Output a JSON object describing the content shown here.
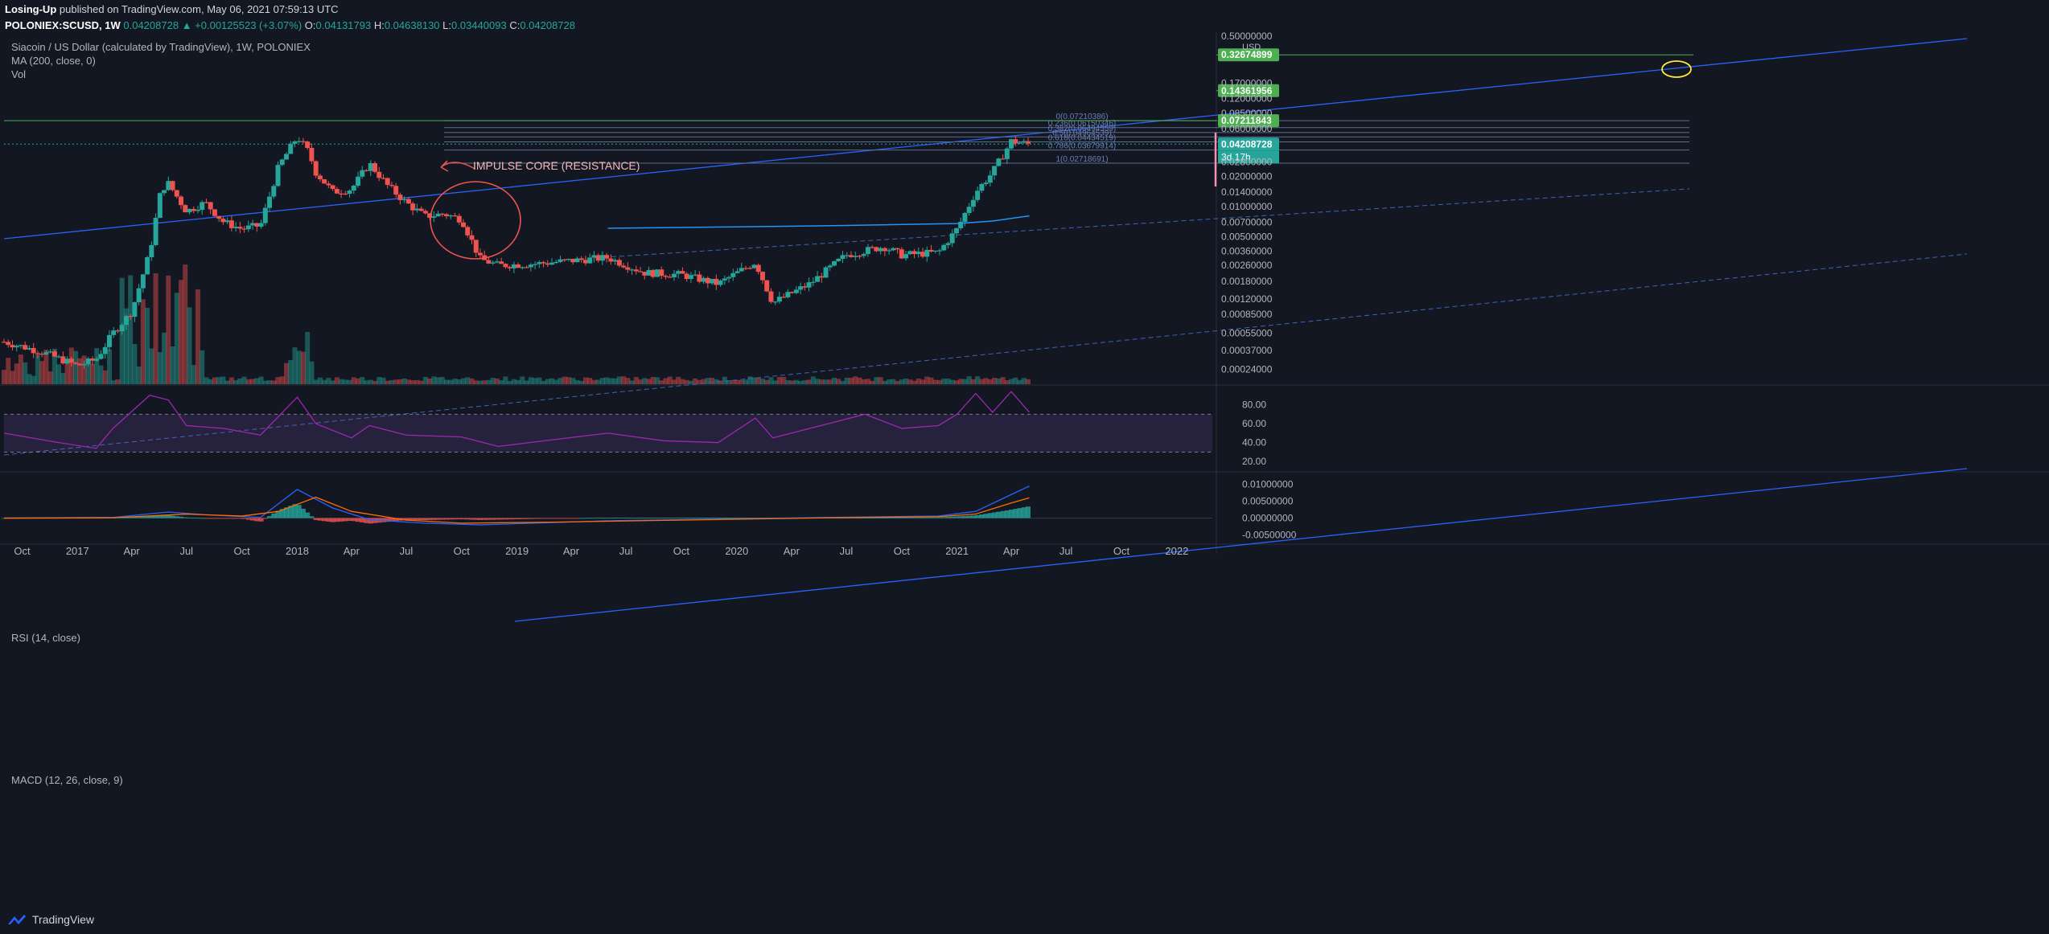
{
  "header": {
    "publisher": "Losing-Up",
    "published_text": "published on TradingView.com, May 06, 2021 07:59:13 UTC",
    "symbol": "POLONIEX:SCUSD",
    "interval": "1W",
    "last_price": "0.04208728",
    "change": "▲ +0.00125523 (+3.07%)",
    "o_label": "O:",
    "o": "0.04131793",
    "h_label": "H:",
    "h": "0.04638130",
    "l_label": "L:",
    "l": "0.03440093",
    "c_label": "C:",
    "c": "0.04208728"
  },
  "legend": {
    "title": "Siacoin / US Dollar (calculated by TradingView), 1W, POLONIEX",
    "ma": "MA (200, close, 0)",
    "vol": "Vol"
  },
  "rsi_title": "RSI (14, close)",
  "macd_title": "MACD (12, 26, close, 9)",
  "footer": {
    "brand": "TradingView"
  },
  "colors": {
    "up": "#26a69a",
    "down": "#ef5350",
    "trend": "#2962ff",
    "rsi": "#9c27b0",
    "green_line": "#4caf50"
  },
  "chart_data": [
    {
      "type": "candlestick",
      "title": "Siacoin / US Dollar (calculated by TradingView), 1W, POLONIEX",
      "y_scale": "log",
      "y_unit": "USD",
      "y_ticks": [
        0.5,
        0.32674899,
        0.17,
        0.12,
        0.085,
        0.06,
        0.028,
        0.02,
        0.014,
        0.01,
        0.007,
        0.005,
        0.0036,
        0.0026,
        0.0018,
        0.0012,
        0.00085,
        0.00055,
        0.00037,
        0.00024
      ],
      "y_tick_labels": [
        "0.50000000",
        "0.32674899",
        "0.17000000",
        "0.12000000",
        "0.08500000",
        "0.06000000",
        "0.02800000",
        "0.02000000",
        "0.01400000",
        "0.01000000",
        "0.00700000",
        "0.00500000",
        "0.00360000",
        "0.00260000",
        "0.00180000",
        "0.00120000",
        "0.00085000",
        "0.00055000",
        "0.00037000",
        "0.00024000"
      ],
      "axis_unit_label": "USD",
      "x_ticks": [
        "Oct",
        "2017",
        "Apr",
        "Jul",
        "Oct",
        "2018",
        "Apr",
        "Jul",
        "Oct",
        "2019",
        "Apr",
        "Jul",
        "Oct",
        "2020",
        "Apr",
        "Jul",
        "Oct",
        "2021",
        "Apr",
        "Jul",
        "Oct",
        "2022"
      ],
      "close_path": [
        [
          "2016-09",
          0.00045
        ],
        [
          "2016-11",
          0.00036
        ],
        [
          "2017-01",
          0.00026
        ],
        [
          "2017-02",
          0.0003
        ],
        [
          "2017-03",
          0.00055
        ],
        [
          "2017-04",
          0.0009
        ],
        [
          "2017-05",
          0.0035
        ],
        [
          "2017-05-20",
          0.015
        ],
        [
          "2017-06",
          0.017
        ],
        [
          "2017-07",
          0.009
        ],
        [
          "2017-08",
          0.011
        ],
        [
          "2017-09",
          0.007
        ],
        [
          "2017-10",
          0.006
        ],
        [
          "2017-11",
          0.0065
        ],
        [
          "2017-12",
          0.025
        ],
        [
          "2018-01",
          0.05
        ],
        [
          "2018-01-20",
          0.035
        ],
        [
          "2018-02",
          0.022
        ],
        [
          "2018-03",
          0.014
        ],
        [
          "2018-04",
          0.015
        ],
        [
          "2018-05",
          0.027
        ],
        [
          "2018-06",
          0.016
        ],
        [
          "2018-07",
          0.011
        ],
        [
          "2018-08",
          0.008
        ],
        [
          "2018-09",
          0.0085
        ],
        [
          "2018-10",
          0.0075
        ],
        [
          "2018-11",
          0.003
        ],
        [
          "2018-12",
          0.0026
        ],
        [
          "2019-02",
          0.0027
        ],
        [
          "2019-04",
          0.0029
        ],
        [
          "2019-06",
          0.0031
        ],
        [
          "2019-08",
          0.0022
        ],
        [
          "2019-10",
          0.0021
        ],
        [
          "2019-12",
          0.0017
        ],
        [
          "2020-02",
          0.0028
        ],
        [
          "2020-03",
          0.0011
        ],
        [
          "2020-05",
          0.0017
        ],
        [
          "2020-07",
          0.0033
        ],
        [
          "2020-09",
          0.004
        ],
        [
          "2020-10",
          0.0033
        ],
        [
          "2020-12",
          0.0035
        ],
        [
          "2021-01",
          0.006
        ],
        [
          "2021-02",
          0.014
        ],
        [
          "2021-03",
          0.022
        ],
        [
          "2021-04",
          0.045
        ],
        [
          "2021-05",
          0.04208728
        ]
      ],
      "horizontal_lines": [
        {
          "price": 0.32674899,
          "label": "0.32674899",
          "color": "#4caf50"
        },
        {
          "price": 0.14361956,
          "label": "0.14361956",
          "color": "#4caf50"
        },
        {
          "price": 0.07211843,
          "label": "0.07211843",
          "color": "#4caf50"
        },
        {
          "price": 0.04208728,
          "label": "0.04208728",
          "color": "#26a69a"
        }
      ],
      "current_price_label": "0.04208728",
      "countdown": "3d 17h",
      "fib_levels": [
        {
          "label": "0(0.07210386)",
          "price": 0.07210386
        },
        {
          "label": "0.236(0.06150346)",
          "price": 0.06150346
        },
        {
          "label": "0.382(0.05494559)",
          "price": 0.05494559
        },
        {
          "label": "0.5(0.04964539)",
          "price": 0.04964539
        },
        {
          "label": "0.618(0.04434519)",
          "price": 0.04434519
        },
        {
          "label": "0.786(0.03679914)",
          "price": 0.03679914
        },
        {
          "label": "1(0.02718691)",
          "price": 0.02718691
        }
      ],
      "annotation": "IMPULSE CORE (RESISTANCE)"
    },
    {
      "type": "line",
      "title": "RSI (14, close)",
      "y_ticks": [
        80,
        60,
        40,
        20
      ],
      "y_tick_labels": [
        "80.00",
        "60.00",
        "40.00",
        "20.00"
      ],
      "band": [
        30,
        70
      ],
      "points": [
        [
          "2016-09",
          50
        ],
        [
          "2016-12",
          40
        ],
        [
          "2017-02",
          34
        ],
        [
          "2017-03",
          55
        ],
        [
          "2017-05",
          90
        ],
        [
          "2017-06",
          85
        ],
        [
          "2017-07",
          58
        ],
        [
          "2017-09",
          55
        ],
        [
          "2017-11",
          48
        ],
        [
          "2018-01",
          88
        ],
        [
          "2018-02",
          60
        ],
        [
          "2018-04",
          45
        ],
        [
          "2018-05",
          58
        ],
        [
          "2018-07",
          48
        ],
        [
          "2018-10",
          46
        ],
        [
          "2018-12",
          36
        ],
        [
          "2019-03",
          43
        ],
        [
          "2019-06",
          50
        ],
        [
          "2019-09",
          42
        ],
        [
          "2019-12",
          40
        ],
        [
          "2020-02",
          66
        ],
        [
          "2020-03",
          45
        ],
        [
          "2020-06",
          60
        ],
        [
          "2020-08",
          70
        ],
        [
          "2020-10",
          55
        ],
        [
          "2020-12",
          58
        ],
        [
          "2021-01",
          70
        ],
        [
          "2021-02",
          92
        ],
        [
          "2021-03",
          72
        ],
        [
          "2021-04",
          94
        ],
        [
          "2021-05",
          72
        ]
      ]
    },
    {
      "type": "line",
      "title": "MACD (12, 26, close, 9)",
      "y_ticks": [
        0.01,
        0.005,
        0,
        -0.005
      ],
      "y_tick_labels": [
        "0.01000000",
        "0.00500000",
        "0.00000000",
        "-0.00500000"
      ],
      "series": [
        {
          "role": "macd",
          "color": "#2962ff",
          "points": [
            [
              "2016-09",
              0
            ],
            [
              "2017-03",
              0.0002
            ],
            [
              "2017-06",
              0.0018
            ],
            [
              "2017-08",
              0.001
            ],
            [
              "2017-11",
              0.0002
            ],
            [
              "2018-01",
              0.0085
            ],
            [
              "2018-03",
              0.003
            ],
            [
              "2018-05",
              -0.0005
            ],
            [
              "2018-08",
              -0.0015
            ],
            [
              "2018-11",
              -0.002
            ],
            [
              "2019-06",
              -0.0008
            ],
            [
              "2020-06",
              0.0002
            ],
            [
              "2020-12",
              0.0006
            ],
            [
              "2021-02",
              0.002
            ],
            [
              "2021-04",
              0.007
            ],
            [
              "2021-05",
              0.0095
            ]
          ]
        },
        {
          "role": "signal",
          "color": "#ff6d00",
          "points": [
            [
              "2016-09",
              0
            ],
            [
              "2017-03",
              0.0001
            ],
            [
              "2017-07",
              0.0012
            ],
            [
              "2017-10",
              0.0006
            ],
            [
              "2017-12",
              0.002
            ],
            [
              "2018-02",
              0.0062
            ],
            [
              "2018-04",
              0.002
            ],
            [
              "2018-07",
              -0.0006
            ],
            [
              "2018-10",
              -0.0015
            ],
            [
              "2019-03",
              -0.0012
            ],
            [
              "2020-06",
              0.0001
            ],
            [
              "2020-12",
              0.0004
            ],
            [
              "2021-02",
              0.0012
            ],
            [
              "2021-04",
              0.0045
            ],
            [
              "2021-05",
              0.006
            ]
          ]
        }
      ]
    }
  ]
}
